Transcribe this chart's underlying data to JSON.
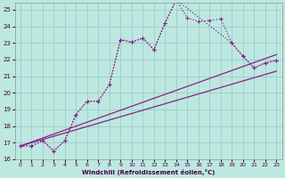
{
  "xlabel": "Windchill (Refroidissement éolien,°C)",
  "bg_color": "#bde8e0",
  "grid_color": "#99cccc",
  "line_color": "#882288",
  "xlim": [
    -0.5,
    23.5
  ],
  "ylim": [
    16,
    25.4
  ],
  "xticks": [
    0,
    1,
    2,
    3,
    4,
    5,
    6,
    7,
    8,
    9,
    10,
    11,
    12,
    13,
    14,
    15,
    16,
    17,
    18,
    19,
    20,
    21,
    22,
    23
  ],
  "yticks": [
    16,
    17,
    18,
    19,
    20,
    21,
    22,
    23,
    24,
    25
  ],
  "line1_x": [
    0,
    1,
    2,
    3,
    4,
    5,
    6,
    7,
    8,
    9,
    10,
    11,
    12,
    13,
    14,
    15,
    16,
    17,
    18,
    19,
    20,
    21,
    22,
    23
  ],
  "line1_y": [
    16.8,
    16.8,
    17.1,
    16.5,
    17.1,
    18.7,
    19.5,
    19.5,
    20.5,
    23.2,
    23.05,
    23.3,
    22.6,
    24.2,
    25.6,
    24.5,
    24.3,
    24.35,
    24.45,
    23.0,
    22.2,
    21.5,
    21.8,
    21.95
  ],
  "line2_x": [
    0,
    1,
    2,
    3,
    4,
    5,
    6,
    7,
    8,
    9,
    10,
    11,
    12,
    13,
    14,
    19,
    20,
    21,
    22,
    23
  ],
  "line2_y": [
    16.8,
    16.8,
    17.15,
    16.5,
    17.15,
    18.7,
    19.5,
    19.5,
    20.5,
    23.2,
    23.05,
    23.3,
    22.6,
    24.2,
    25.6,
    23.0,
    22.2,
    21.5,
    21.8,
    21.95
  ],
  "line3_x": [
    0,
    23
  ],
  "line3_y": [
    16.8,
    22.3
  ],
  "line4_x": [
    0,
    23
  ],
  "line4_y": [
    16.8,
    21.3
  ]
}
